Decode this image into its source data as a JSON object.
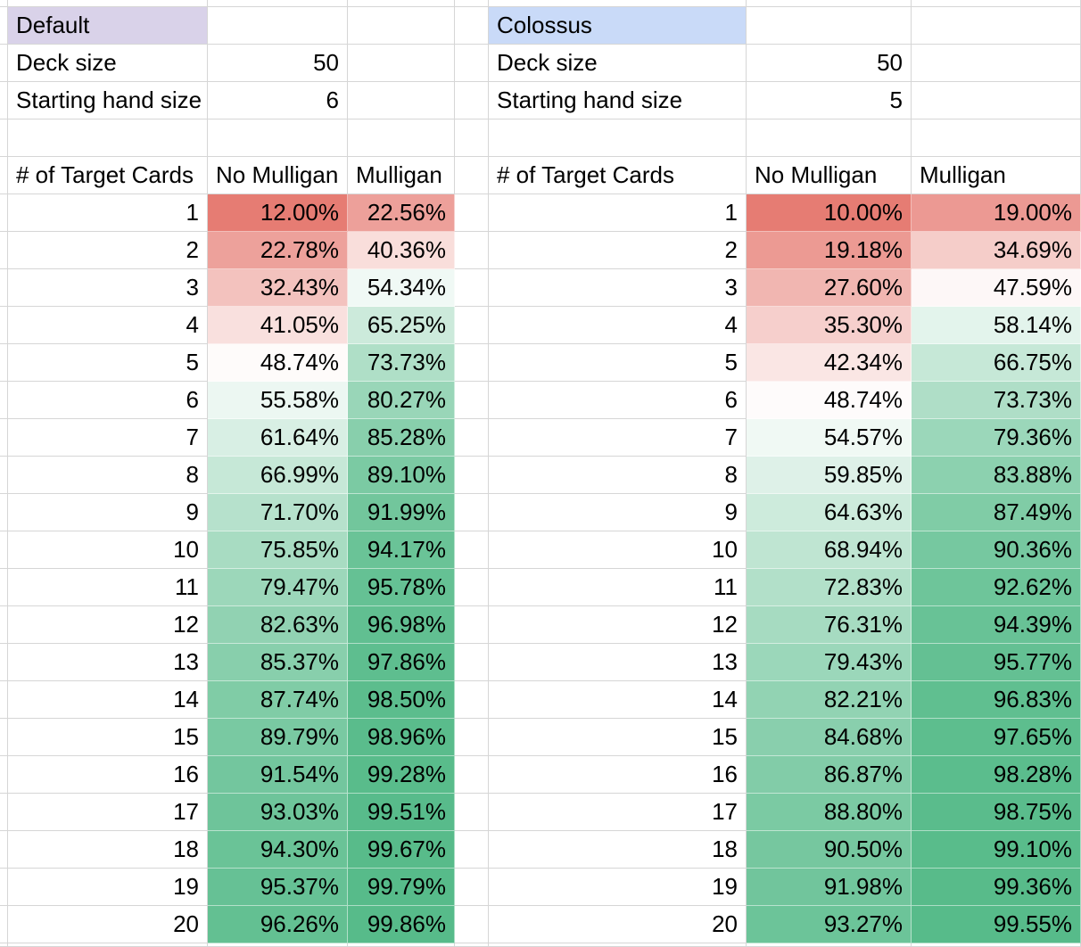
{
  "sheet": {
    "gridline_color": "#D6D6D6",
    "text_color": "#000000",
    "scale_colors": {
      "low": "#E67C73",
      "mid": "#FFFFFF",
      "high": "#57BB8A"
    },
    "tables": [
      {
        "id": "default",
        "title": "Default",
        "title_bg": "#D9D2E9",
        "settings": [
          {
            "label": "Deck size",
            "value": "50"
          },
          {
            "label": "Starting hand size",
            "value": "6"
          }
        ],
        "columns": [
          "# of Target Cards",
          "No Mulligan",
          "Mulligan"
        ],
        "color_scale": {
          "min": 12.0,
          "mid": 50,
          "max": 99.86
        },
        "rows": [
          {
            "target_cards": "1",
            "no_mulligan": "12.00%",
            "mulligan": "22.56%"
          },
          {
            "target_cards": "2",
            "no_mulligan": "22.78%",
            "mulligan": "40.36%"
          },
          {
            "target_cards": "3",
            "no_mulligan": "32.43%",
            "mulligan": "54.34%"
          },
          {
            "target_cards": "4",
            "no_mulligan": "41.05%",
            "mulligan": "65.25%"
          },
          {
            "target_cards": "5",
            "no_mulligan": "48.74%",
            "mulligan": "73.73%"
          },
          {
            "target_cards": "6",
            "no_mulligan": "55.58%",
            "mulligan": "80.27%"
          },
          {
            "target_cards": "7",
            "no_mulligan": "61.64%",
            "mulligan": "85.28%"
          },
          {
            "target_cards": "8",
            "no_mulligan": "66.99%",
            "mulligan": "89.10%"
          },
          {
            "target_cards": "9",
            "no_mulligan": "71.70%",
            "mulligan": "91.99%"
          },
          {
            "target_cards": "10",
            "no_mulligan": "75.85%",
            "mulligan": "94.17%"
          },
          {
            "target_cards": "11",
            "no_mulligan": "79.47%",
            "mulligan": "95.78%"
          },
          {
            "target_cards": "12",
            "no_mulligan": "82.63%",
            "mulligan": "96.98%"
          },
          {
            "target_cards": "13",
            "no_mulligan": "85.37%",
            "mulligan": "97.86%"
          },
          {
            "target_cards": "14",
            "no_mulligan": "87.74%",
            "mulligan": "98.50%"
          },
          {
            "target_cards": "15",
            "no_mulligan": "89.79%",
            "mulligan": "98.96%"
          },
          {
            "target_cards": "16",
            "no_mulligan": "91.54%",
            "mulligan": "99.28%"
          },
          {
            "target_cards": "17",
            "no_mulligan": "93.03%",
            "mulligan": "99.51%"
          },
          {
            "target_cards": "18",
            "no_mulligan": "94.30%",
            "mulligan": "99.67%"
          },
          {
            "target_cards": "19",
            "no_mulligan": "95.37%",
            "mulligan": "99.79%"
          },
          {
            "target_cards": "20",
            "no_mulligan": "96.26%",
            "mulligan": "99.86%"
          }
        ]
      },
      {
        "id": "colossus",
        "title": "Colossus",
        "title_bg": "#C9DAF8",
        "settings": [
          {
            "label": "Deck size",
            "value": "50"
          },
          {
            "label": "Starting hand size",
            "value": "5"
          }
        ],
        "columns": [
          "# of Target Cards",
          "No Mulligan",
          "Mulligan"
        ],
        "color_scale": {
          "min": 10.0,
          "mid": 50,
          "max": 99.55
        },
        "rows": [
          {
            "target_cards": "1",
            "no_mulligan": "10.00%",
            "mulligan": "19.00%"
          },
          {
            "target_cards": "2",
            "no_mulligan": "19.18%",
            "mulligan": "34.69%"
          },
          {
            "target_cards": "3",
            "no_mulligan": "27.60%",
            "mulligan": "47.59%"
          },
          {
            "target_cards": "4",
            "no_mulligan": "35.30%",
            "mulligan": "58.14%"
          },
          {
            "target_cards": "5",
            "no_mulligan": "42.34%",
            "mulligan": "66.75%"
          },
          {
            "target_cards": "6",
            "no_mulligan": "48.74%",
            "mulligan": "73.73%"
          },
          {
            "target_cards": "7",
            "no_mulligan": "54.57%",
            "mulligan": "79.36%"
          },
          {
            "target_cards": "8",
            "no_mulligan": "59.85%",
            "mulligan": "83.88%"
          },
          {
            "target_cards": "9",
            "no_mulligan": "64.63%",
            "mulligan": "87.49%"
          },
          {
            "target_cards": "10",
            "no_mulligan": "68.94%",
            "mulligan": "90.36%"
          },
          {
            "target_cards": "11",
            "no_mulligan": "72.83%",
            "mulligan": "92.62%"
          },
          {
            "target_cards": "12",
            "no_mulligan": "76.31%",
            "mulligan": "94.39%"
          },
          {
            "target_cards": "13",
            "no_mulligan": "79.43%",
            "mulligan": "95.77%"
          },
          {
            "target_cards": "14",
            "no_mulligan": "82.21%",
            "mulligan": "96.83%"
          },
          {
            "target_cards": "15",
            "no_mulligan": "84.68%",
            "mulligan": "97.65%"
          },
          {
            "target_cards": "16",
            "no_mulligan": "86.87%",
            "mulligan": "98.28%"
          },
          {
            "target_cards": "17",
            "no_mulligan": "88.80%",
            "mulligan": "98.75%"
          },
          {
            "target_cards": "18",
            "no_mulligan": "90.50%",
            "mulligan": "99.10%"
          },
          {
            "target_cards": "19",
            "no_mulligan": "91.98%",
            "mulligan": "99.36%"
          },
          {
            "target_cards": "20",
            "no_mulligan": "93.27%",
            "mulligan": "99.55%"
          }
        ]
      }
    ]
  }
}
